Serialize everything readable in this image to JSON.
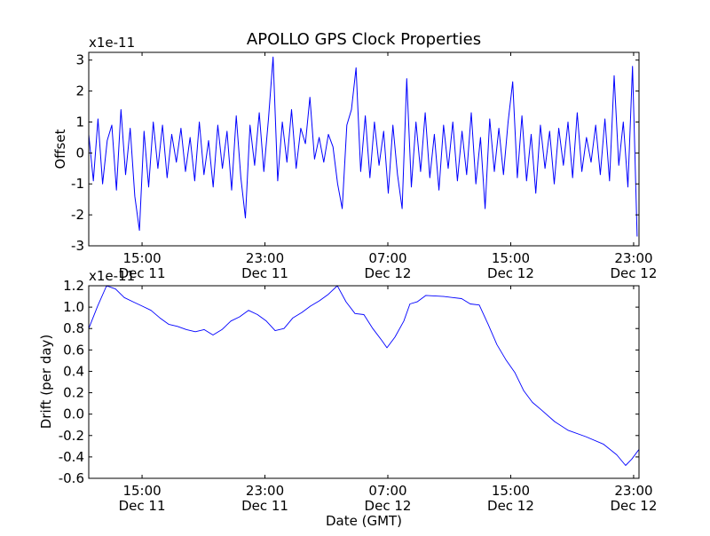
{
  "title": "APOLLO GPS Clock Properties",
  "chart_data": [
    {
      "type": "line",
      "title": "APOLLO GPS Clock Properties",
      "ylabel": "Offset",
      "xlabel": "",
      "y_scale_label": "x1e-11",
      "x_units": "hours since Dec 11 00:00 GMT",
      "xlim": [
        11.53,
        47.35
      ],
      "ylim": [
        -3,
        3.25
      ],
      "yticks": [
        -3,
        -2,
        -1,
        0,
        1,
        2,
        3
      ],
      "ytick_labels": [
        "-3",
        "-2",
        "-1",
        "0",
        "1",
        "2",
        "3"
      ],
      "xticks": [
        15,
        23,
        31,
        39,
        47
      ],
      "xtick_labels": [
        [
          "15:00",
          "Dec 11"
        ],
        [
          "23:00",
          "Dec 11"
        ],
        [
          "07:00",
          "Dec 12"
        ],
        [
          "15:00",
          "Dec 12"
        ],
        [
          "23:00",
          "Dec 12"
        ]
      ],
      "color": "#0000ff",
      "x_start": 11.53,
      "x_step": 0.3,
      "values": [
        0.6,
        -0.9,
        1.1,
        -1.0,
        0.4,
        0.9,
        -1.2,
        1.4,
        -0.7,
        0.8,
        -1.4,
        -2.5,
        0.7,
        -1.1,
        1.0,
        -0.5,
        0.9,
        -0.8,
        0.6,
        -0.3,
        0.8,
        -0.6,
        0.5,
        -0.9,
        1.0,
        -0.7,
        0.4,
        -1.1,
        0.9,
        -0.5,
        0.7,
        -1.2,
        1.2,
        -0.8,
        -2.1,
        0.9,
        -0.4,
        1.3,
        -0.6,
        1.1,
        3.1,
        -0.9,
        1.0,
        -0.3,
        1.4,
        -0.5,
        0.8,
        0.3,
        1.8,
        -0.2,
        0.5,
        -0.3,
        0.6,
        0.2,
        -1.0,
        -1.8,
        0.9,
        1.4,
        2.75,
        -0.6,
        1.2,
        -0.8,
        1.0,
        -0.4,
        0.7,
        -1.3,
        0.9,
        -0.7,
        -1.8,
        2.4,
        -1.1,
        1.0,
        -0.6,
        1.3,
        -0.8,
        0.6,
        -1.2,
        0.9,
        -0.5,
        1.0,
        -0.9,
        0.7,
        -0.7,
        1.3,
        -1.0,
        0.5,
        -1.8,
        1.1,
        -0.6,
        0.8,
        -0.7,
        1.0,
        2.3,
        -0.8,
        1.2,
        -0.9,
        0.6,
        -1.3,
        0.9,
        -0.5,
        0.7,
        -1.0,
        0.8,
        -0.4,
        1.0,
        -0.8,
        1.3,
        -0.6,
        0.5,
        -0.3,
        0.9,
        -0.7,
        1.1,
        -0.9,
        2.5,
        -0.4,
        1.0,
        -1.1,
        2.8,
        -2.7
      ]
    },
    {
      "type": "line",
      "ylabel": "Drift (per day)",
      "xlabel": "Date (GMT)",
      "y_scale_label": "x1e-11",
      "x_units": "hours since Dec 11 00:00 GMT",
      "xlim": [
        11.53,
        47.35
      ],
      "ylim": [
        -0.6,
        1.2
      ],
      "yticks": [
        -0.6,
        -0.4,
        -0.2,
        0.0,
        0.2,
        0.4,
        0.6,
        0.8,
        1.0,
        1.2
      ],
      "ytick_labels": [
        "-0.6",
        "-0.4",
        "-0.2",
        "0.0",
        "0.2",
        "0.4",
        "0.6",
        "0.8",
        "1.0",
        "1.2"
      ],
      "xticks": [
        15,
        23,
        31,
        39,
        47
      ],
      "xtick_labels": [
        [
          "15:00",
          "Dec 11"
        ],
        [
          "23:00",
          "Dec 11"
        ],
        [
          "07:00",
          "Dec 12"
        ],
        [
          "15:00",
          "Dec 12"
        ],
        [
          "23:00",
          "Dec 12"
        ]
      ],
      "color": "#0000ff",
      "x": [
        11.53,
        12.11,
        12.69,
        13.27,
        13.84,
        14.42,
        15.0,
        15.58,
        16.16,
        16.73,
        17.31,
        17.89,
        18.47,
        19.04,
        19.62,
        20.2,
        20.78,
        21.35,
        21.93,
        22.51,
        23.09,
        23.66,
        24.24,
        24.82,
        25.4,
        25.97,
        26.55,
        27.13,
        27.71,
        28.28,
        28.86,
        29.44,
        30.02,
        30.6,
        30.94,
        31.46,
        32.04,
        32.44,
        32.91,
        33.48,
        34.64,
        35.8,
        36.37,
        36.95,
        37.53,
        38.1,
        38.68,
        39.26,
        39.84,
        40.41,
        40.99,
        41.86,
        42.72,
        43.88,
        45.03,
        45.9,
        46.48,
        46.88,
        47.35
      ],
      "y": [
        0.8,
        1.01,
        1.2,
        1.17,
        1.09,
        1.05,
        1.01,
        0.97,
        0.9,
        0.84,
        0.82,
        0.79,
        0.77,
        0.79,
        0.74,
        0.79,
        0.87,
        0.91,
        0.97,
        0.93,
        0.87,
        0.78,
        0.8,
        0.9,
        0.95,
        1.01,
        1.06,
        1.12,
        1.2,
        1.05,
        0.94,
        0.93,
        0.8,
        0.69,
        0.62,
        0.72,
        0.87,
        1.03,
        1.05,
        1.11,
        1.1,
        1.08,
        1.03,
        1.02,
        0.84,
        0.65,
        0.51,
        0.39,
        0.22,
        0.11,
        0.04,
        -0.07,
        -0.15,
        -0.21,
        -0.28,
        -0.38,
        -0.48,
        -0.42,
        -0.33
      ]
    }
  ]
}
